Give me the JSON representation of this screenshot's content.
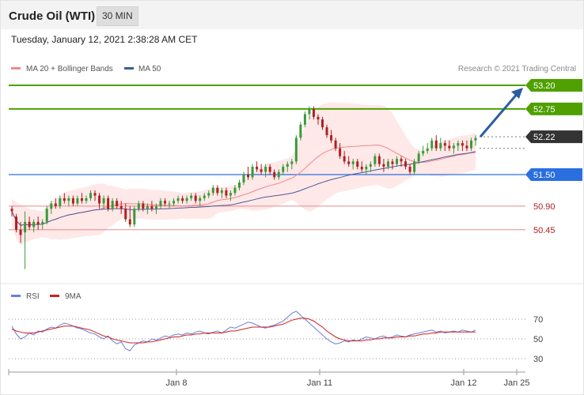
{
  "header": {
    "title": "Crude Oil (WTI)",
    "timeframe": "30 MIN",
    "datetime": "Tuesday, January 12, 2021 2:38:28 AM CET"
  },
  "legend": {
    "ma20_label": "MA 20 + Bollinger Bands",
    "ma50_label": "MA 50",
    "credit": "Research © 2021 Trading Central",
    "rsi_label": "RSI",
    "ma9_label": "9MA"
  },
  "colors": {
    "bull": "#3a9a3a",
    "bear": "#b02020",
    "green_level": "#4fa000",
    "blue_level": "#2a6fe0",
    "red_level": "#e88a8a",
    "ma20": "#f08a8a",
    "ma50": "#4d5a9a",
    "band": "#fde0e0",
    "rsi": "#6a7fd6",
    "ma9": "#d02020",
    "arrow": "#2a5f9f"
  },
  "chart_data": [
    {
      "type": "candlestick",
      "x_axis": {
        "ticks": [
          "Jan 8",
          "Jan 11",
          "Jan 12",
          "Jan 25"
        ]
      },
      "ylim": [
        49.6,
        53.4
      ],
      "price_levels": [
        {
          "label": "53.20",
          "value": 53.2,
          "style": "resistance-2"
        },
        {
          "label": "52.75",
          "value": 52.75,
          "style": "resistance-1"
        },
        {
          "label": "52.22",
          "value": 52.22,
          "style": "last"
        },
        {
          "label": "51.50",
          "value": 51.5,
          "style": "pivot"
        },
        {
          "label": "50.90",
          "value": 50.9,
          "style": "support-1"
        },
        {
          "label": "50.45",
          "value": 50.45,
          "style": "support-2"
        }
      ],
      "forecast_arrow": {
        "from": 52.22,
        "to": 53.2
      },
      "ohlc": [
        [
          50.85,
          50.9,
          50.7,
          50.8
        ],
        [
          50.7,
          50.75,
          50.4,
          50.45
        ],
        [
          50.45,
          50.6,
          50.2,
          50.35
        ],
        [
          50.4,
          50.8,
          49.7,
          50.6
        ],
        [
          50.6,
          50.7,
          50.45,
          50.5
        ],
        [
          50.5,
          50.65,
          50.4,
          50.6
        ],
        [
          50.6,
          50.7,
          50.45,
          50.55
        ],
        [
          50.55,
          50.65,
          50.45,
          50.6
        ],
        [
          50.6,
          50.9,
          50.55,
          50.85
        ],
        [
          50.85,
          51.0,
          50.75,
          50.95
        ],
        [
          50.95,
          51.05,
          50.85,
          50.9
        ],
        [
          50.9,
          51.1,
          50.85,
          51.05
        ],
        [
          51.05,
          51.15,
          50.95,
          51.0
        ],
        [
          51.0,
          51.1,
          50.9,
          51.05
        ],
        [
          51.05,
          51.1,
          50.9,
          50.95
        ],
        [
          50.95,
          51.1,
          50.9,
          51.05
        ],
        [
          51.05,
          51.15,
          50.95,
          51.0
        ],
        [
          51.0,
          51.1,
          50.95,
          51.05
        ],
        [
          51.05,
          51.2,
          51.0,
          51.15
        ],
        [
          51.15,
          51.2,
          51.0,
          51.1
        ],
        [
          51.1,
          51.15,
          50.85,
          50.95
        ],
        [
          50.95,
          51.1,
          50.85,
          51.05
        ],
        [
          51.05,
          51.1,
          50.8,
          50.85
        ],
        [
          50.85,
          51.05,
          50.8,
          51.0
        ],
        [
          51.0,
          51.05,
          50.85,
          50.9
        ],
        [
          50.9,
          51.0,
          50.75,
          50.85
        ],
        [
          50.85,
          50.95,
          50.6,
          50.65
        ],
        [
          50.65,
          50.9,
          50.5,
          50.55
        ],
        [
          50.55,
          50.9,
          50.5,
          50.85
        ],
        [
          50.85,
          51.0,
          50.8,
          50.95
        ],
        [
          50.95,
          51.0,
          50.8,
          50.85
        ],
        [
          50.85,
          50.95,
          50.75,
          50.9
        ],
        [
          50.9,
          51.0,
          50.8,
          50.85
        ],
        [
          50.85,
          50.95,
          50.75,
          50.9
        ],
        [
          50.9,
          51.05,
          50.85,
          51.0
        ],
        [
          51.0,
          51.05,
          50.9,
          50.95
        ],
        [
          50.95,
          51.0,
          50.85,
          50.95
        ],
        [
          50.95,
          51.05,
          50.9,
          51.0
        ],
        [
          51.0,
          51.1,
          50.95,
          51.05
        ],
        [
          51.05,
          51.1,
          50.95,
          51.0
        ],
        [
          51.0,
          51.1,
          50.95,
          51.05
        ],
        [
          51.05,
          51.15,
          51.0,
          51.1
        ],
        [
          51.1,
          51.15,
          50.95,
          51.0
        ],
        [
          51.0,
          51.1,
          50.9,
          51.05
        ],
        [
          51.05,
          51.15,
          51.0,
          51.1
        ],
        [
          51.1,
          51.2,
          51.05,
          51.15
        ],
        [
          51.15,
          51.3,
          51.1,
          51.25
        ],
        [
          51.25,
          51.3,
          51.1,
          51.15
        ],
        [
          51.15,
          51.25,
          51.05,
          51.2
        ],
        [
          51.2,
          51.25,
          51.05,
          51.1
        ],
        [
          51.1,
          51.2,
          51.0,
          51.15
        ],
        [
          51.15,
          51.3,
          51.1,
          51.25
        ],
        [
          51.25,
          51.4,
          51.2,
          51.35
        ],
        [
          51.35,
          51.55,
          51.3,
          51.5
        ],
        [
          51.5,
          51.65,
          51.4,
          51.45
        ],
        [
          51.45,
          51.7,
          51.4,
          51.65
        ],
        [
          51.65,
          51.75,
          51.55,
          51.6
        ],
        [
          51.6,
          51.7,
          51.5,
          51.55
        ],
        [
          51.55,
          51.7,
          51.45,
          51.65
        ],
        [
          51.65,
          51.7,
          51.5,
          51.55
        ],
        [
          51.55,
          51.6,
          51.4,
          51.45
        ],
        [
          51.45,
          51.6,
          51.4,
          51.55
        ],
        [
          51.55,
          51.7,
          51.5,
          51.65
        ],
        [
          51.65,
          51.75,
          51.55,
          51.7
        ],
        [
          51.7,
          51.8,
          51.6,
          51.75
        ],
        [
          51.75,
          52.25,
          51.7,
          52.2
        ],
        [
          52.2,
          52.5,
          52.15,
          52.45
        ],
        [
          52.45,
          52.7,
          52.4,
          52.65
        ],
        [
          52.65,
          52.8,
          52.55,
          52.75
        ],
        [
          52.75,
          52.8,
          52.55,
          52.6
        ],
        [
          52.6,
          52.65,
          52.45,
          52.55
        ],
        [
          52.55,
          52.6,
          52.35,
          52.4
        ],
        [
          52.4,
          52.45,
          52.2,
          52.25
        ],
        [
          52.25,
          52.35,
          52.1,
          52.15
        ],
        [
          52.15,
          52.2,
          51.95,
          52.0
        ],
        [
          52.0,
          52.1,
          51.8,
          51.85
        ],
        [
          51.85,
          51.95,
          51.7,
          51.75
        ],
        [
          51.75,
          51.85,
          51.65,
          51.7
        ],
        [
          51.7,
          51.8,
          51.6,
          51.75
        ],
        [
          51.75,
          51.8,
          51.6,
          51.65
        ],
        [
          51.65,
          51.75,
          51.55,
          51.6
        ],
        [
          51.6,
          51.7,
          51.5,
          51.65
        ],
        [
          51.65,
          51.75,
          51.55,
          51.7
        ],
        [
          51.7,
          51.9,
          51.65,
          51.85
        ],
        [
          51.85,
          51.9,
          51.65,
          51.7
        ],
        [
          51.7,
          51.8,
          51.55,
          51.65
        ],
        [
          51.65,
          51.8,
          51.6,
          51.75
        ],
        [
          51.75,
          51.8,
          51.6,
          51.7
        ],
        [
          51.7,
          51.85,
          51.65,
          51.8
        ],
        [
          51.8,
          51.85,
          51.65,
          51.75
        ],
        [
          51.75,
          51.8,
          51.6,
          51.65
        ],
        [
          51.65,
          51.7,
          51.5,
          51.55
        ],
        [
          51.55,
          51.8,
          51.5,
          51.75
        ],
        [
          51.75,
          51.95,
          51.7,
          51.9
        ],
        [
          51.9,
          52.05,
          51.85,
          51.95
        ],
        [
          51.95,
          52.1,
          51.9,
          52.0
        ],
        [
          52.0,
          52.2,
          51.95,
          52.15
        ],
        [
          52.15,
          52.25,
          51.95,
          52.0
        ],
        [
          52.0,
          52.2,
          51.95,
          52.1
        ],
        [
          52.1,
          52.15,
          51.95,
          52.05
        ],
        [
          52.05,
          52.15,
          51.95,
          52.0
        ],
        [
          52.0,
          52.1,
          51.9,
          52.05
        ],
        [
          52.05,
          52.15,
          51.95,
          52.1
        ],
        [
          52.1,
          52.15,
          51.95,
          52.05
        ],
        [
          52.05,
          52.15,
          51.95,
          52.0
        ],
        [
          52.0,
          52.2,
          51.95,
          52.15
        ],
        [
          52.15,
          52.25,
          52.05,
          52.2
        ]
      ]
    },
    {
      "type": "line",
      "name": "RSI panel",
      "ylim": [
        20,
        85
      ],
      "y_ticks": [
        30,
        50,
        70
      ],
      "series": [
        {
          "name": "RSI",
          "values": [
            63,
            55,
            50,
            52,
            56,
            54,
            58,
            57,
            60,
            62,
            61,
            64,
            66,
            65,
            63,
            61,
            60,
            58,
            56,
            55,
            52,
            50,
            53,
            48,
            45,
            47,
            40,
            38,
            44,
            46,
            48,
            47,
            50,
            49,
            51,
            53,
            52,
            54,
            55,
            54,
            56,
            55,
            57,
            58,
            56,
            55,
            57,
            58,
            56,
            59,
            62,
            61,
            63,
            65,
            67,
            66,
            64,
            62,
            61,
            63,
            64,
            66,
            68,
            72,
            76,
            78,
            74,
            70,
            66,
            62,
            58,
            54,
            50,
            47,
            45,
            46,
            48,
            47,
            49,
            48,
            50,
            52,
            51,
            50,
            52,
            53,
            51,
            52,
            54,
            53,
            52,
            54,
            55,
            56,
            57,
            58,
            59,
            57,
            58,
            56,
            57,
            58,
            57,
            59,
            58,
            57,
            59
          ]
        },
        {
          "name": "9MA",
          "values": [
            60,
            58,
            57,
            56,
            56,
            56,
            57,
            58,
            59,
            60,
            61,
            62,
            63,
            63,
            63,
            62,
            61,
            60,
            59,
            57,
            55,
            53,
            52,
            50,
            49,
            48,
            47,
            46,
            46,
            46,
            46,
            47,
            47,
            48,
            49,
            50,
            51,
            52,
            52,
            53,
            54,
            54,
            55,
            55,
            56,
            56,
            56,
            56,
            56,
            57,
            58,
            58,
            59,
            60,
            61,
            62,
            62,
            62,
            62,
            62,
            63,
            64,
            65,
            67,
            69,
            70,
            71,
            71,
            70,
            68,
            65,
            62,
            58,
            55,
            52,
            50,
            49,
            48,
            48,
            48,
            48,
            49,
            49,
            50,
            50,
            51,
            51,
            51,
            52,
            52,
            52,
            53,
            53,
            54,
            55,
            55,
            56,
            56,
            57,
            57,
            57,
            57,
            57,
            57,
            57,
            57,
            57
          ]
        }
      ],
      "reference_lines": [
        70,
        50,
        30
      ]
    }
  ]
}
